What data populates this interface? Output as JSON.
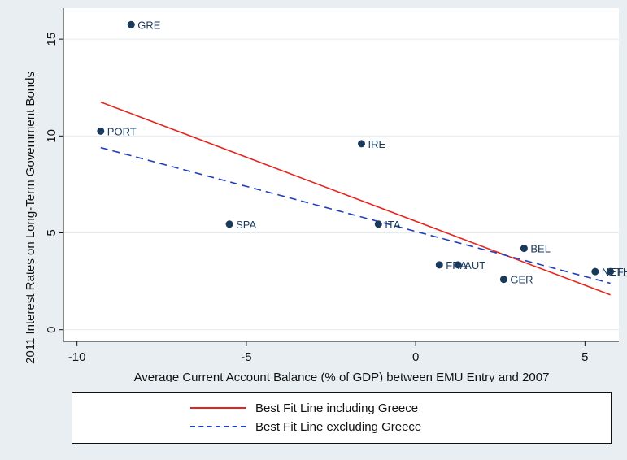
{
  "chart_data": {
    "type": "scatter",
    "xlabel": "Average Current Account Balance (% of GDP) between EMU Entry and 2007",
    "ylabel": "2011 Interest Rates on Long-Term Government Bonds",
    "xlim": [
      -10.4,
      6
    ],
    "ylim": [
      -0.6,
      16.6
    ],
    "x_ticks": [
      -10,
      -5,
      0,
      5
    ],
    "y_ticks": [
      0,
      5,
      10,
      15
    ],
    "x_tick_labels": [
      "-10",
      "-5",
      "0",
      "5"
    ],
    "y_tick_labels": [
      "0",
      "5",
      "10",
      "15"
    ],
    "grid": "horizontal",
    "points": [
      {
        "label": "GRE",
        "x": -8.4,
        "y": 15.75
      },
      {
        "label": "PORT",
        "x": -9.3,
        "y": 10.25
      },
      {
        "label": "IRE",
        "x": -1.6,
        "y": 9.6
      },
      {
        "label": "SPA",
        "x": -5.5,
        "y": 5.45
      },
      {
        "label": "ITA",
        "x": -1.1,
        "y": 5.45
      },
      {
        "label": "BEL",
        "x": 3.2,
        "y": 4.2
      },
      {
        "label": "FRA",
        "x": 0.7,
        "y": 3.35
      },
      {
        "label": "AUT",
        "x": 1.25,
        "y": 3.35
      },
      {
        "label": "GER",
        "x": 2.6,
        "y": 2.6
      },
      {
        "label": "NETH",
        "x": 5.3,
        "y": 3.0
      },
      {
        "label": "FIN",
        "x": 5.75,
        "y": 3.0
      }
    ],
    "series": [
      {
        "name": "Best Fit Line including Greece",
        "color": "#e8221b",
        "dash": "solid",
        "x": [
          -9.3,
          5.75
        ],
        "y": [
          11.75,
          1.8
        ]
      },
      {
        "name": "Best Fit Line excluding Greece",
        "color": "#1f3fbf",
        "dash": "dashed",
        "x": [
          -9.3,
          5.75
        ],
        "y": [
          9.4,
          2.4
        ]
      }
    ],
    "marker_color": "#1a3a5c",
    "legend_position": "bottom"
  }
}
